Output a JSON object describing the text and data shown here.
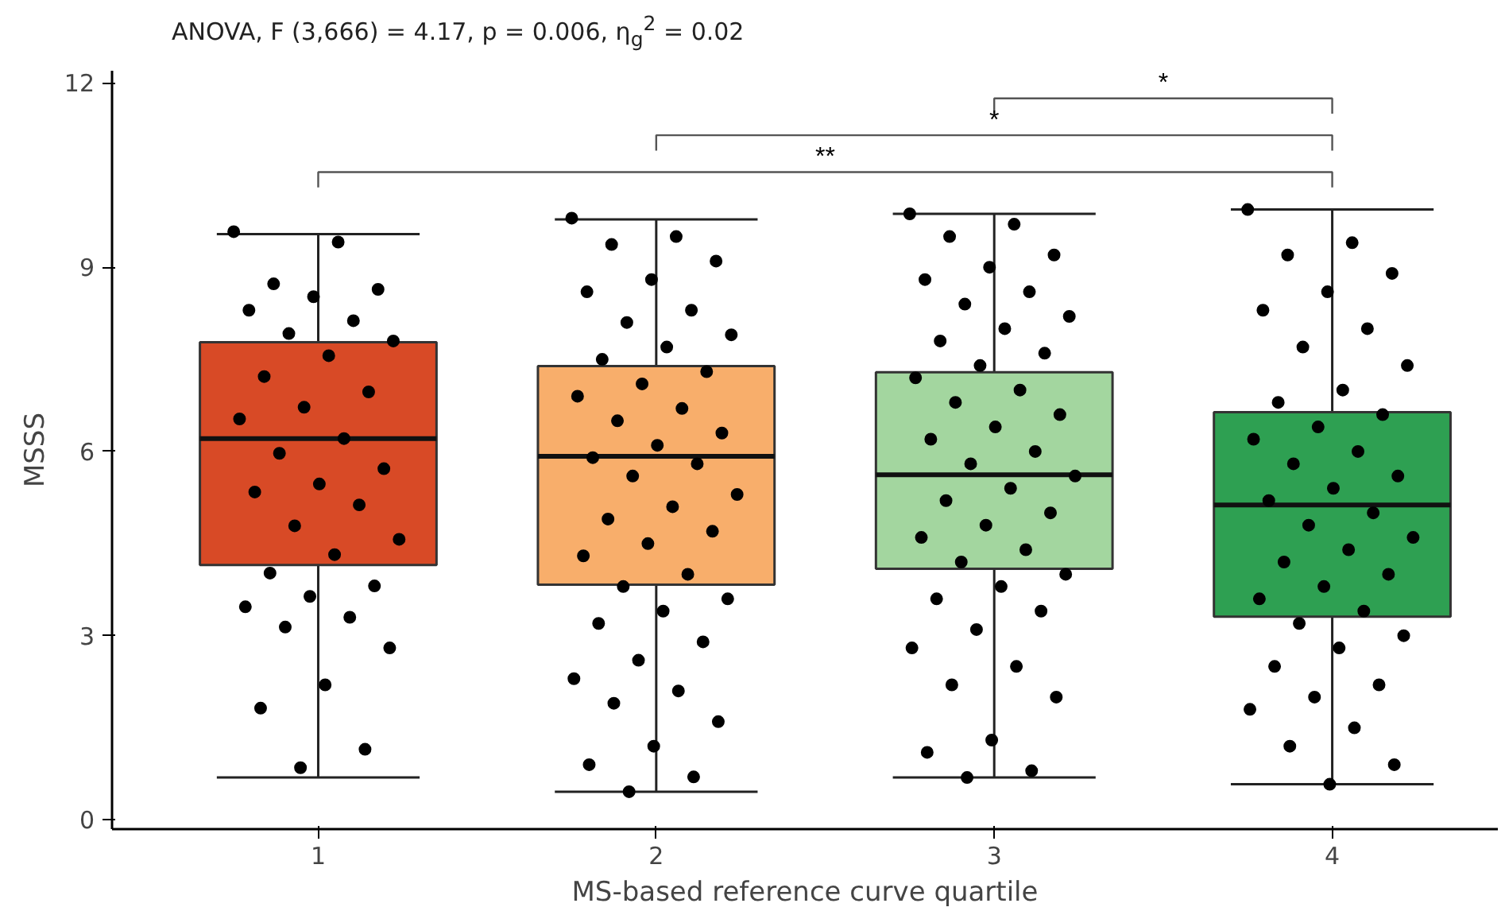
{
  "chart_data": {
    "type": "box",
    "title": "ANOVA, F (3,666) = 4.17, p = 0.006, η$_{g}$$^{2}$ = 0.02",
    "xlabel": "MS-based reference curve quartile",
    "ylabel": "MSSS",
    "categories": [
      "1",
      "2",
      "3",
      "4"
    ],
    "colors": [
      "#d84a26",
      "#f8ae6b",
      "#a3d69f",
      "#2ea052"
    ],
    "boxes": [
      {
        "low": 0.69,
        "q1": 4.15,
        "median": 6.21,
        "q3": 7.78,
        "high": 9.54
      },
      {
        "low": 0.46,
        "q1": 3.83,
        "median": 5.92,
        "q3": 7.39,
        "high": 9.78
      },
      {
        "low": 0.69,
        "q1": 4.09,
        "median": 5.62,
        "q3": 7.29,
        "high": 9.87
      },
      {
        "low": 0.58,
        "q1": 3.31,
        "median": 5.13,
        "q3": 6.64,
        "high": 9.94
      }
    ],
    "series": [
      {
        "type": "scatter",
        "color": "#000000",
        "x": [
          "1",
          "1",
          "1",
          "1",
          "1",
          "1",
          "1",
          "1",
          "1",
          "1",
          "1",
          "1",
          "1",
          "1",
          "1",
          "1",
          "1",
          "1",
          "1",
          "1",
          "1",
          "1",
          "1",
          "1",
          "1",
          "1",
          "1",
          "1",
          "1",
          "1",
          "1",
          "1",
          "1",
          "1"
        ],
        "values": [
          9.58,
          9.41,
          8.73,
          8.64,
          8.52,
          8.3,
          8.13,
          7.92,
          7.8,
          7.56,
          7.22,
          6.97,
          6.72,
          6.53,
          6.21,
          5.97,
          5.72,
          5.47,
          5.34,
          5.13,
          4.79,
          4.57,
          4.32,
          4.02,
          3.81,
          3.64,
          3.47,
          3.3,
          3.14,
          2.8,
          2.2,
          1.82,
          1.15,
          0.85
        ]
      },
      {
        "type": "scatter",
        "color": "#000000",
        "x": [
          "2",
          "2",
          "2",
          "2",
          "2",
          "2",
          "2",
          "2",
          "2",
          "2",
          "2",
          "2",
          "2",
          "2",
          "2",
          "2",
          "2",
          "2",
          "2",
          "2",
          "2",
          "2",
          "2",
          "2",
          "2",
          "2",
          "2",
          "2",
          "2",
          "2",
          "2",
          "2",
          "2",
          "2",
          "2",
          "2",
          "2",
          "2",
          "2",
          "2",
          "2",
          "2"
        ],
        "values": [
          9.8,
          9.5,
          9.37,
          9.1,
          8.8,
          8.6,
          8.3,
          8.1,
          7.9,
          7.7,
          7.5,
          7.3,
          7.1,
          6.9,
          6.7,
          6.5,
          6.3,
          6.1,
          5.9,
          5.8,
          5.6,
          5.3,
          5.1,
          4.9,
          4.7,
          4.5,
          4.3,
          4.0,
          3.8,
          3.6,
          3.4,
          3.2,
          2.9,
          2.6,
          2.3,
          2.1,
          1.9,
          1.6,
          1.2,
          0.9,
          0.7,
          0.46
        ]
      },
      {
        "type": "scatter",
        "color": "#000000",
        "x": [
          "3",
          "3",
          "3",
          "3",
          "3",
          "3",
          "3",
          "3",
          "3",
          "3",
          "3",
          "3",
          "3",
          "3",
          "3",
          "3",
          "3",
          "3",
          "3",
          "3",
          "3",
          "3",
          "3",
          "3",
          "3",
          "3",
          "3",
          "3",
          "3",
          "3",
          "3",
          "3",
          "3",
          "3",
          "3",
          "3",
          "3",
          "3",
          "3",
          "3",
          "3",
          "3"
        ],
        "values": [
          9.87,
          9.7,
          9.5,
          9.2,
          9.0,
          8.8,
          8.6,
          8.4,
          8.2,
          8.0,
          7.8,
          7.6,
          7.4,
          7.2,
          7.0,
          6.8,
          6.6,
          6.4,
          6.2,
          6.0,
          5.8,
          5.6,
          5.4,
          5.2,
          5.0,
          4.8,
          4.6,
          4.4,
          4.2,
          4.0,
          3.8,
          3.6,
          3.4,
          3.1,
          2.8,
          2.5,
          2.2,
          2.0,
          1.3,
          1.1,
          0.8,
          0.69
        ]
      },
      {
        "type": "scatter",
        "color": "#000000",
        "x": [
          "4",
          "4",
          "4",
          "4",
          "4",
          "4",
          "4",
          "4",
          "4",
          "4",
          "4",
          "4",
          "4",
          "4",
          "4",
          "4",
          "4",
          "4",
          "4",
          "4",
          "4",
          "4",
          "4",
          "4",
          "4",
          "4",
          "4",
          "4",
          "4",
          "4",
          "4",
          "4",
          "4",
          "4",
          "4",
          "4",
          "4",
          "4",
          "4"
        ],
        "values": [
          9.94,
          9.4,
          9.2,
          8.9,
          8.6,
          8.3,
          8.0,
          7.7,
          7.4,
          7.0,
          6.8,
          6.6,
          6.4,
          6.2,
          6.0,
          5.8,
          5.6,
          5.4,
          5.2,
          5.0,
          4.8,
          4.6,
          4.4,
          4.2,
          4.0,
          3.8,
          3.6,
          3.4,
          3.2,
          3.0,
          2.8,
          2.5,
          2.2,
          2.0,
          1.8,
          1.5,
          1.2,
          0.9,
          0.58
        ]
      }
    ],
    "annotations": [
      "*",
      "*",
      "**"
    ],
    "ylim": [
      -0.15,
      12.2
    ],
    "yticks": [
      0,
      3,
      6,
      9,
      12
    ],
    "grid": false,
    "marker": "circle"
  }
}
